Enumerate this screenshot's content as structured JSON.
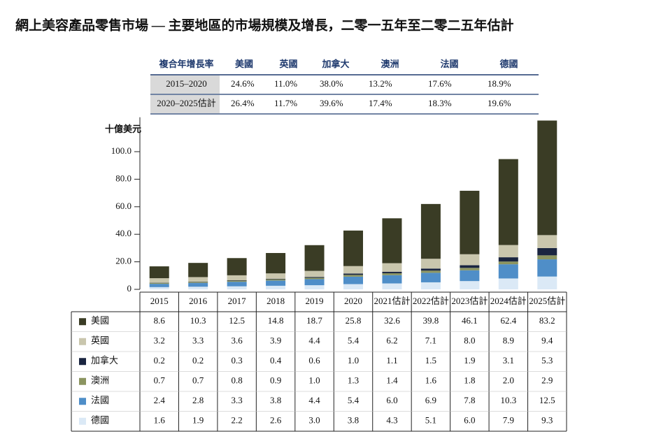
{
  "cagr_table": {
    "header": [
      "複合年增長率",
      "美國",
      "英國",
      "加拿大",
      "澳洲",
      "法國",
      "德國"
    ],
    "rows": [
      [
        "2015–2020",
        "24.6%",
        "11.0%",
        "38.0%",
        "13.2%",
        "17.6%",
        "18.9%"
      ],
      [
        "2020–2025估計",
        "26.4%",
        "11.7%",
        "39.6%",
        "17.4%",
        "18.3%",
        "19.6%"
      ]
    ]
  },
  "chart_data": {
    "type": "stacked_bar",
    "title": "網上美容產品零售市場 — 主要地區的市場規模及增長，二零一五年至二零二五年估計",
    "y_label": "十億美元",
    "categories": [
      "2015",
      "2016",
      "2017",
      "2018",
      "2019",
      "2020",
      "2021估計",
      "2022估計",
      "2023估計",
      "2024估計",
      "2025估計"
    ],
    "ylim": [
      0,
      125
    ],
    "yticks": [
      0,
      {
        "value": 20,
        "label": "20.0"
      },
      {
        "value": 40,
        "label": "40.0"
      },
      {
        "value": 60,
        "label": "60.0"
      },
      {
        "value": 80,
        "label": "80.0"
      },
      {
        "value": 100,
        "label": "100.0"
      }
    ],
    "grid": false,
    "series": [
      {
        "name": "美國",
        "color": "#3a3c25",
        "values": [
          8.6,
          10.3,
          12.5,
          14.8,
          18.7,
          25.8,
          32.6,
          39.8,
          46.1,
          62.4,
          83.2
        ],
        "value_labels": [
          "8.6",
          "10.3",
          "12.5",
          "14.8",
          "18.7",
          "25.8",
          "32.6",
          "39.8",
          "46.1",
          "62.4",
          "83.2"
        ]
      },
      {
        "name": "英國",
        "color": "#c9c6ad",
        "values": [
          3.2,
          3.3,
          3.6,
          3.9,
          4.4,
          5.4,
          6.2,
          7.1,
          8.0,
          8.9,
          9.4
        ],
        "value_labels": [
          "3.2",
          "3.3",
          "3.6",
          "3.9",
          "4.4",
          "5.4",
          "6.2",
          "7.1",
          "8.0",
          "8.9",
          "9.4"
        ]
      },
      {
        "name": "加拿大",
        "color": "#1a2540",
        "values": [
          0.2,
          0.2,
          0.3,
          0.4,
          0.6,
          1.0,
          1.1,
          1.5,
          1.9,
          3.1,
          5.3
        ],
        "value_labels": [
          "0.2",
          "0.2",
          "0.3",
          "0.4",
          "0.6",
          "1.0",
          "1.1",
          "1.5",
          "1.9",
          "3.1",
          "5.3"
        ]
      },
      {
        "name": "澳洲",
        "color": "#8b9460",
        "values": [
          0.7,
          0.7,
          0.8,
          0.9,
          1.0,
          1.3,
          1.4,
          1.6,
          1.8,
          2.0,
          2.9
        ],
        "value_labels": [
          "0.7",
          "0.7",
          "0.8",
          "0.9",
          "1.0",
          "1.3",
          "1.4",
          "1.6",
          "1.8",
          "2.0",
          "2.9"
        ]
      },
      {
        "name": "法國",
        "color": "#4f8ec8",
        "values": [
          2.4,
          2.8,
          3.3,
          3.8,
          4.4,
          5.4,
          6.0,
          6.9,
          7.8,
          10.3,
          12.5
        ],
        "value_labels": [
          "2.4",
          "2.8",
          "3.3",
          "3.8",
          "4.4",
          "5.4",
          "6.0",
          "6.9",
          "7.8",
          "10.3",
          "12.5"
        ]
      },
      {
        "name": "德國",
        "color": "#dbe9f6",
        "values": [
          1.6,
          1.9,
          2.2,
          2.6,
          3.0,
          3.8,
          4.3,
          5.1,
          6.0,
          7.9,
          9.3
        ],
        "value_labels": [
          "1.6",
          "1.9",
          "2.2",
          "2.6",
          "3.0",
          "3.8",
          "4.3",
          "5.1",
          "6.0",
          "7.9",
          "9.3"
        ]
      }
    ]
  }
}
